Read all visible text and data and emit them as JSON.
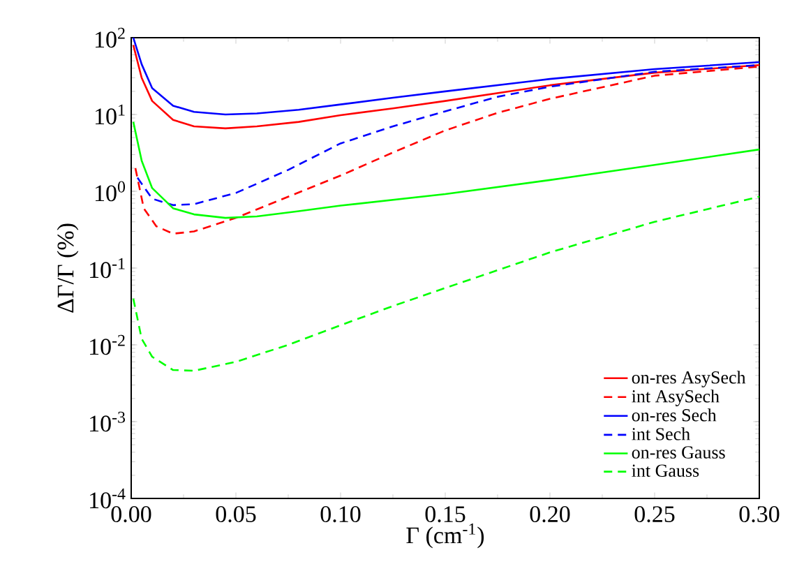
{
  "chart_data": {
    "type": "line",
    "xlabel": "Γ (cm$^{-1}$)",
    "ylabel": "ΔΓ/Γ (%)",
    "log": "y",
    "grid": false,
    "legend": "bottom right",
    "marker": "none",
    "xlim": [
      0,
      0.3
    ],
    "ylim": [
      0.0001,
      100
    ],
    "xticks": [
      {
        "value": 0,
        "label": "0.00"
      },
      {
        "value": 0.05,
        "label": "0.05"
      },
      {
        "value": 0.1,
        "label": "0.10"
      },
      {
        "value": 0.15,
        "label": "0.15"
      },
      {
        "value": 0.2,
        "label": "0.20"
      },
      {
        "value": 0.25,
        "label": "0.25"
      },
      {
        "value": 0.3,
        "label": "0.30"
      }
    ],
    "yticks": [
      {
        "value": 0.0001,
        "label": "10$^{-4}$"
      },
      {
        "value": 0.001,
        "label": "10$^{-3}$"
      },
      {
        "value": 0.01,
        "label": "10$^{-2}$"
      },
      {
        "value": 0.1,
        "label": "10$^{-1}$"
      },
      {
        "value": 1,
        "label": "10$^{0}$"
      },
      {
        "value": 10,
        "label": "10$^{1}$"
      },
      {
        "value": 100,
        "label": "10$^{2}$"
      }
    ],
    "series": [
      {
        "name": "on-res AsySech",
        "color": "#ff0000",
        "line_style": "solid",
        "x": [
          0.001,
          0.005,
          0.01,
          0.02,
          0.03,
          0.045,
          0.06,
          0.08,
          0.1,
          0.125,
          0.15,
          0.2,
          0.25,
          0.3
        ],
        "values": [
          80,
          30,
          15,
          8.5,
          7,
          6.6,
          7,
          8,
          9.8,
          12,
          15,
          24,
          35,
          44
        ]
      },
      {
        "name": "int AsySech",
        "color": "#ff0000",
        "line_style": "dashed",
        "x": [
          0.002,
          0.006,
          0.012,
          0.02,
          0.03,
          0.05,
          0.075,
          0.1,
          0.125,
          0.15,
          0.175,
          0.2,
          0.25,
          0.3
        ],
        "values": [
          2,
          0.6,
          0.35,
          0.28,
          0.3,
          0.45,
          0.85,
          1.6,
          3.2,
          6.2,
          10.5,
          16,
          32,
          42
        ]
      },
      {
        "name": "on-res Sech",
        "color": "#0000ff",
        "line_style": "solid",
        "x": [
          0.001,
          0.005,
          0.01,
          0.02,
          0.03,
          0.045,
          0.06,
          0.08,
          0.1,
          0.125,
          0.15,
          0.2,
          0.25,
          0.3
        ],
        "values": [
          100,
          45,
          22,
          13,
          10.8,
          10,
          10.3,
          11.5,
          13.5,
          16.5,
          20,
          29,
          39,
          48
        ]
      },
      {
        "name": "int Sech",
        "color": "#0000ff",
        "line_style": "dashed",
        "x": [
          0.003,
          0.01,
          0.02,
          0.03,
          0.05,
          0.075,
          0.1,
          0.125,
          0.15,
          0.175,
          0.2,
          0.25,
          0.3
        ],
        "values": [
          1.5,
          0.8,
          0.66,
          0.68,
          0.95,
          1.9,
          4.2,
          7,
          11,
          17,
          23,
          36,
          44
        ]
      },
      {
        "name": "on-res Gauss",
        "color": "#00ff00",
        "line_style": "solid",
        "x": [
          0.001,
          0.005,
          0.01,
          0.02,
          0.03,
          0.045,
          0.06,
          0.08,
          0.1,
          0.15,
          0.2,
          0.25,
          0.3
        ],
        "values": [
          8,
          2.5,
          1.1,
          0.6,
          0.5,
          0.45,
          0.47,
          0.55,
          0.65,
          0.92,
          1.4,
          2.2,
          3.5
        ]
      },
      {
        "name": "int Gauss",
        "color": "#00ff00",
        "line_style": "dashed",
        "x": [
          0.001,
          0.005,
          0.01,
          0.02,
          0.03,
          0.05,
          0.075,
          0.1,
          0.125,
          0.15,
          0.2,
          0.25,
          0.3
        ],
        "values": [
          0.04,
          0.012,
          0.007,
          0.0047,
          0.0046,
          0.006,
          0.01,
          0.018,
          0.032,
          0.055,
          0.16,
          0.4,
          0.85
        ]
      }
    ]
  }
}
